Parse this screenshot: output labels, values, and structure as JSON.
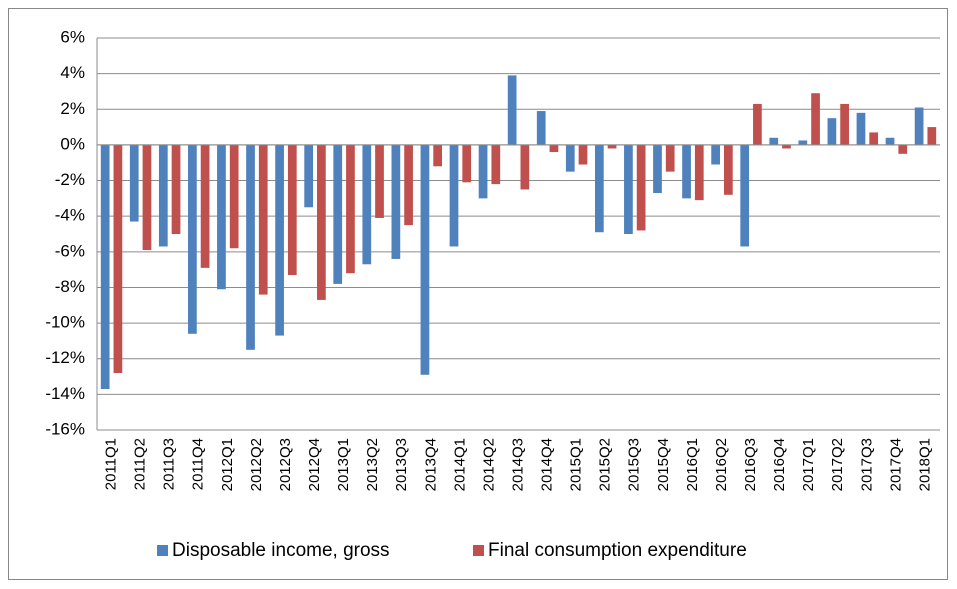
{
  "chart_data": {
    "type": "bar",
    "categories": [
      "2011Q1",
      "2011Q2",
      "2011Q3",
      "2011Q4",
      "2012Q1",
      "2012Q2",
      "2012Q3",
      "2012Q4",
      "2013Q1",
      "2013Q2",
      "2013Q3",
      "2013Q4",
      "2014Q1",
      "2014Q2",
      "2014Q3",
      "2014Q4",
      "2015Q1",
      "2015Q2",
      "2015Q3",
      "2015Q4",
      "2016Q1",
      "2016Q2",
      "2016Q3",
      "2016Q4",
      "2017Q1",
      "2017Q2",
      "2017Q3",
      "2017Q4",
      "2018Q1"
    ],
    "series": [
      {
        "name": "Disposable income, gross",
        "color": "#4f81bd",
        "values": [
          -13.7,
          -4.3,
          -5.7,
          -10.6,
          -8.1,
          -11.5,
          -10.7,
          -3.5,
          -7.8,
          -6.7,
          -6.4,
          -12.9,
          -5.7,
          -3.0,
          3.9,
          1.9,
          -1.5,
          -4.9,
          -5.0,
          -2.7,
          -3.0,
          -1.1,
          -5.7,
          0.4,
          0.25,
          1.5,
          1.8,
          0.4,
          2.1
        ]
      },
      {
        "name": "Final consumption expenditure",
        "color": "#c0504d",
        "values": [
          -12.8,
          -5.9,
          -5.0,
          -6.9,
          -5.8,
          -8.4,
          -7.3,
          -8.7,
          -7.2,
          -4.1,
          -4.5,
          -1.2,
          -2.1,
          -2.2,
          -2.5,
          -0.4,
          -1.1,
          -0.2,
          -4.8,
          -1.5,
          -3.1,
          -2.8,
          2.3,
          -0.2,
          2.9,
          2.3,
          0.7,
          -0.5,
          1.0
        ]
      }
    ],
    "ylim": [
      -16,
      6
    ],
    "yticks": [
      {
        "value": 6,
        "label": "6%"
      },
      {
        "value": 4,
        "label": "4%"
      },
      {
        "value": 2,
        "label": "2%"
      },
      {
        "value": 0,
        "label": "0%"
      },
      {
        "value": -2,
        "label": "-2%"
      },
      {
        "value": -4,
        "label": "-4%"
      },
      {
        "value": -6,
        "label": "-6%"
      },
      {
        "value": -8,
        "label": "-8%"
      },
      {
        "value": -10,
        "label": "-10%"
      },
      {
        "value": -12,
        "label": "-12%"
      },
      {
        "value": -14,
        "label": "-14%"
      },
      {
        "value": -16,
        "label": "-16%"
      }
    ],
    "grid": true,
    "legend": "bottom"
  }
}
